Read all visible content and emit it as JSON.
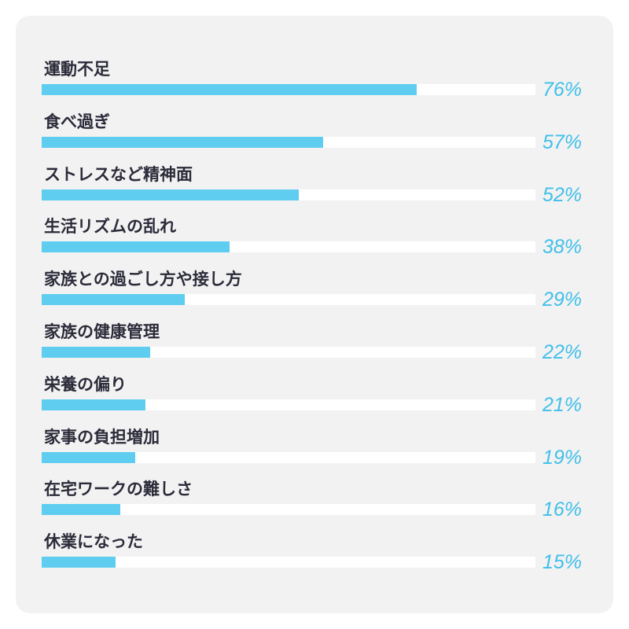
{
  "chart_data": {
    "type": "bar",
    "orientation": "horizontal",
    "title": "",
    "xlabel": "",
    "ylabel": "",
    "xlim": [
      0,
      100
    ],
    "grid": false,
    "bar_color": "#5fcdf0",
    "track_color": "#ffffff",
    "value_label_color": "#41bfea",
    "categories": [
      "運動不足",
      "食べ過ぎ",
      "ストレスなど精神面",
      "生活リズムの乱れ",
      "家族との過ごし方や接し方",
      "家族の健康管理",
      "栄養の偏り",
      "家事の負担増加",
      "在宅ワークの難しさ",
      "休業になった"
    ],
    "values": [
      76,
      57,
      52,
      38,
      29,
      22,
      21,
      19,
      16,
      15
    ],
    "value_labels": [
      "76%",
      "57%",
      "52%",
      "38%",
      "29%",
      "22%",
      "21%",
      "19%",
      "16%",
      "15%"
    ]
  }
}
